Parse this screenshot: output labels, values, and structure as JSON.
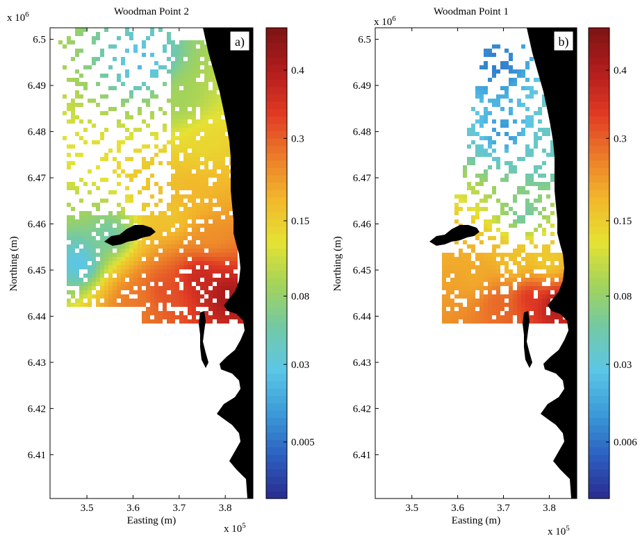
{
  "figure": {
    "colorbar_colors": [
      "#2a2a8e",
      "#2c5fc0",
      "#3b9bd8",
      "#5cc6e6",
      "#72c9a6",
      "#a3d35a",
      "#e6e233",
      "#f2b72b",
      "#ec7c2a",
      "#e03a24",
      "#b21d1c",
      "#7c1414"
    ],
    "land_color": "#000000"
  },
  "chart_data": [
    {
      "type": "heatmap",
      "title": "Woodman Point 2",
      "panel_label": "a)",
      "xlabel": "Easting (m)",
      "ylabel": "Northing (m)",
      "x_multiplier_label": "x 10",
      "x_multiplier_exp": "5",
      "y_multiplier_label": "x 10",
      "y_multiplier_exp": "6",
      "xlim": [
        3.42,
        3.86
      ],
      "ylim": [
        6.4005,
        6.5025
      ],
      "x_ticks": [
        3.5,
        3.6,
        3.7,
        3.8
      ],
      "x_tick_labels": [
        "3.5",
        "3.6",
        "3.7",
        "3.8"
      ],
      "y_ticks": [
        6.41,
        6.42,
        6.43,
        6.44,
        6.45,
        6.46,
        6.47,
        6.48,
        6.49,
        6.5
      ],
      "y_tick_labels": [
        "6.41",
        "6.42",
        "6.43",
        "6.44",
        "6.45",
        "6.46",
        "6.47",
        "6.48",
        "6.49",
        "6.5"
      ],
      "colorbar_ticks": [
        0.005,
        0.03,
        0.08,
        0.15,
        0.3,
        0.4
      ],
      "colorbar_tick_labels": [
        "0.005",
        "0.03",
        "0.08",
        "0.15",
        "0.3",
        "0.4"
      ],
      "colorbar_range": [
        0.0,
        0.45
      ],
      "plume_centers": [
        {
          "x": 3.8,
          "y": 6.445,
          "value": 0.42
        },
        {
          "x": 3.74,
          "y": 6.449,
          "value": 0.38
        },
        {
          "x": 3.66,
          "y": 6.446,
          "value": 0.32
        },
        {
          "x": 3.6,
          "y": 6.444,
          "value": 0.27
        },
        {
          "x": 3.76,
          "y": 6.458,
          "value": 0.24
        },
        {
          "x": 3.73,
          "y": 6.466,
          "value": 0.19
        },
        {
          "x": 3.68,
          "y": 6.462,
          "value": 0.16
        },
        {
          "x": 3.75,
          "y": 6.478,
          "value": 0.14
        },
        {
          "x": 3.7,
          "y": 6.487,
          "value": 0.09
        },
        {
          "x": 3.55,
          "y": 6.458,
          "value": 0.05
        },
        {
          "x": 3.48,
          "y": 6.452,
          "value": 0.02
        },
        {
          "x": 3.62,
          "y": 6.495,
          "value": 0.02
        }
      ]
    },
    {
      "type": "heatmap",
      "title": "Woodman Point 1",
      "panel_label": "b)",
      "xlabel": "Easting (m)",
      "ylabel": "Northing (m)",
      "x_multiplier_label": "x 10",
      "x_multiplier_exp": "5",
      "y_multiplier_label": "x 10",
      "y_multiplier_exp": "6",
      "xlim": [
        3.42,
        3.86
      ],
      "ylim": [
        6.4005,
        6.5025
      ],
      "x_ticks": [
        3.5,
        3.6,
        3.7,
        3.8
      ],
      "x_tick_labels": [
        "3.5",
        "3.6",
        "3.7",
        "3.8"
      ],
      "y_ticks": [
        6.41,
        6.42,
        6.43,
        6.44,
        6.45,
        6.46,
        6.47,
        6.48,
        6.49,
        6.5
      ],
      "y_tick_labels": [
        "6.41",
        "6.42",
        "6.43",
        "6.44",
        "6.45",
        "6.46",
        "6.47",
        "6.48",
        "6.49",
        "6.5"
      ],
      "colorbar_ticks": [
        0.006,
        0.03,
        0.08,
        0.15,
        0.3,
        0.4
      ],
      "colorbar_tick_labels": [
        "0.006",
        "0.03",
        "0.08",
        "0.15",
        "0.3",
        "0.4"
      ],
      "colorbar_range": [
        0.0,
        0.45
      ],
      "plume_centers": [
        {
          "x": 3.81,
          "y": 6.443,
          "value": 0.42
        },
        {
          "x": 3.75,
          "y": 6.445,
          "value": 0.36
        },
        {
          "x": 3.68,
          "y": 6.444,
          "value": 0.3
        },
        {
          "x": 3.64,
          "y": 6.448,
          "value": 0.2
        },
        {
          "x": 3.72,
          "y": 6.451,
          "value": 0.16
        },
        {
          "x": 3.79,
          "y": 6.452,
          "value": 0.14
        },
        {
          "x": 3.74,
          "y": 6.462,
          "value": 0.05
        },
        {
          "x": 3.78,
          "y": 6.475,
          "value": 0.04
        },
        {
          "x": 3.7,
          "y": 6.48,
          "value": 0.012
        },
        {
          "x": 3.68,
          "y": 6.495,
          "value": 0.008
        }
      ]
    }
  ]
}
